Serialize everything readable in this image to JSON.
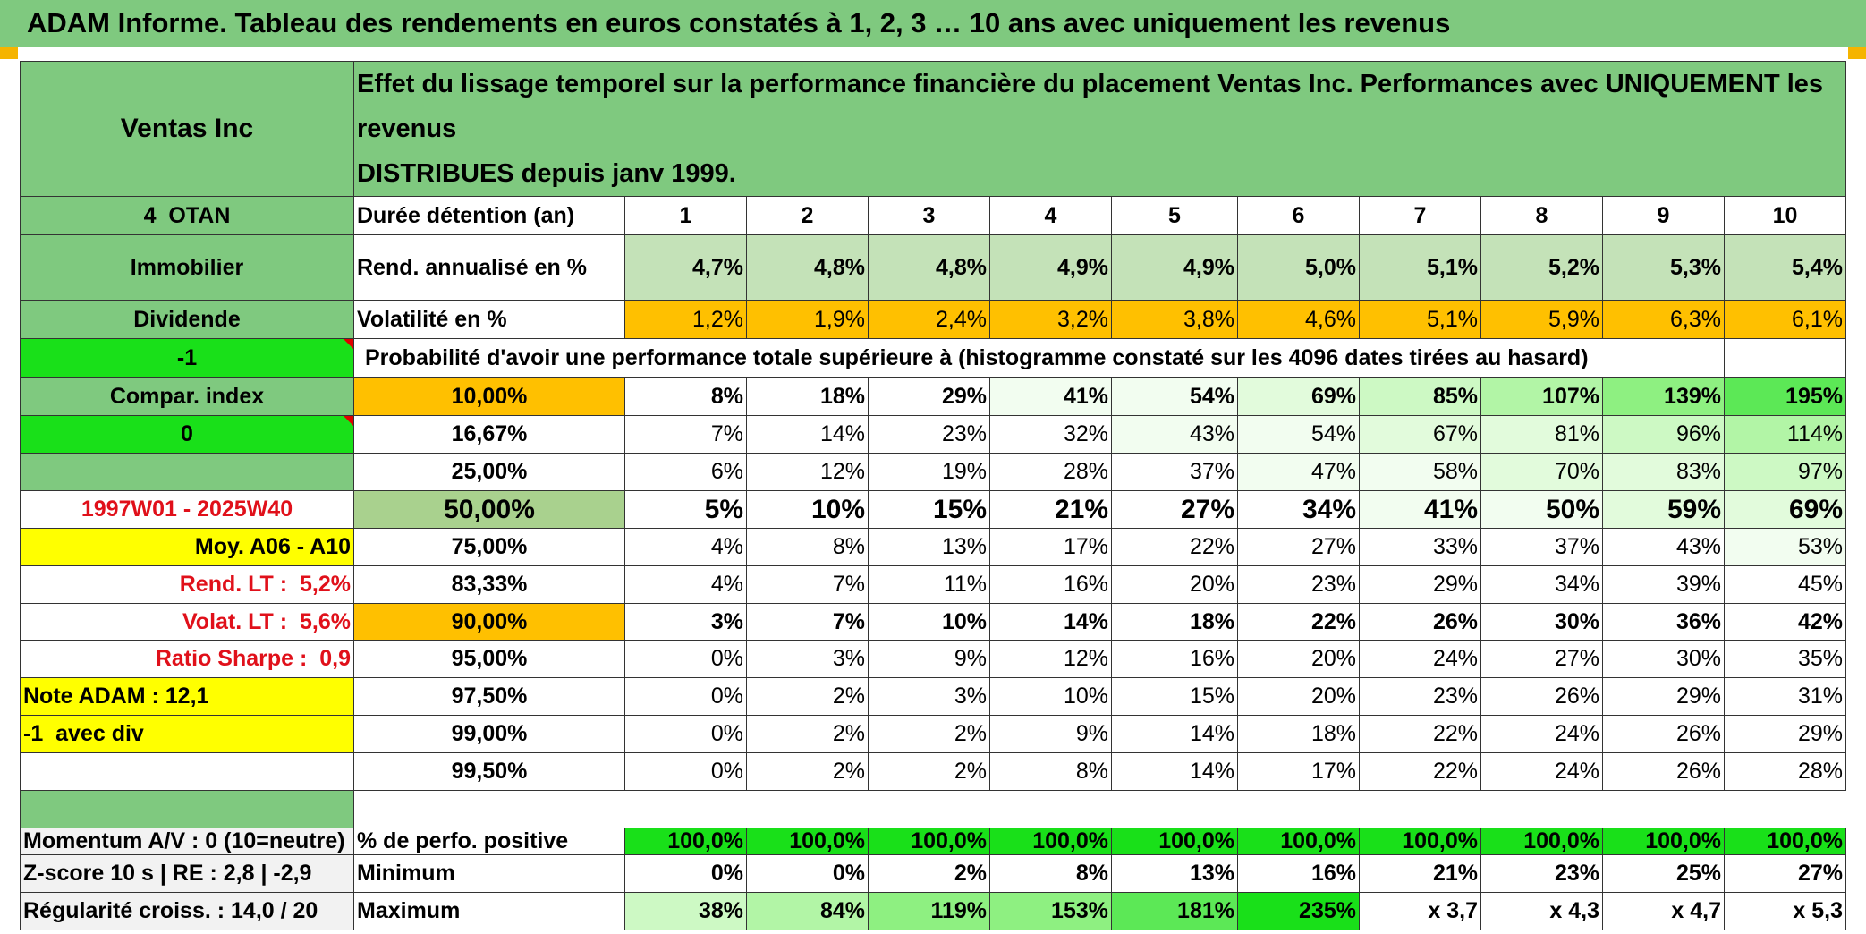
{
  "title": "ADAM Informe. Tableau des rendements en euros constatés à 1, 2, 3 … 10 ans avec uniquement les revenus",
  "header": {
    "asset_name": "Ventas Inc",
    "description_line1": "Effet du lissage temporel sur la performance financière du placement Ventas Inc. Performances avec UNIQUEMENT les revenus",
    "description_line2": "DISTRIBUES depuis janv 1999."
  },
  "side_labels": {
    "code": "4_OTAN",
    "sector": "Immobilier",
    "type": "Dividende",
    "flag_value": "-1",
    "compar_index": "Compar. index",
    "compar_value": "0",
    "period": "1997W01 - 2025W40",
    "moy": "Moy. A06 - A10",
    "rend_lt_label": "Rend. LT :",
    "rend_lt_value": "5,2%",
    "volat_lt_label": "Volat. LT :",
    "volat_lt_value": "5,6%",
    "sharpe_label": "Ratio Sharpe :",
    "sharpe_value": "0,9",
    "note_adam": "Note ADAM : 12,1",
    "avec_div": "-1_avec div",
    "momentum": "Momentum A/V : 0 (10=neutre)",
    "zscore": "Z-score 10 s | RE : 2,8 | -2,9",
    "regularite": "Régularité croiss. : 14,0 / 20"
  },
  "row_labels": {
    "duree": "Durée détention (an)",
    "rend": "Rend. annualisé en %",
    "volat": "Volatilité en %",
    "proba": "Probabilité d'avoir une performance totale supérieure à (histogramme constaté sur les 4096 dates tirées au hasard)",
    "perfo_pos": "% de perfo. positive",
    "minimum": "Minimum",
    "maximum": "Maximum"
  },
  "years": [
    "1",
    "2",
    "3",
    "4",
    "5",
    "6",
    "7",
    "8",
    "9",
    "10"
  ],
  "rend_annualise": [
    "4,7%",
    "4,8%",
    "4,8%",
    "4,9%",
    "4,9%",
    "5,0%",
    "5,1%",
    "5,2%",
    "5,3%",
    "5,4%"
  ],
  "volatilite": [
    "1,2%",
    "1,9%",
    "2,4%",
    "3,2%",
    "3,8%",
    "4,6%",
    "5,1%",
    "5,9%",
    "6,3%",
    "6,1%"
  ],
  "percentile_rows": [
    {
      "label": "10,00%",
      "values": [
        "8%",
        "18%",
        "29%",
        "41%",
        "54%",
        "69%",
        "85%",
        "107%",
        "139%",
        "195%"
      ]
    },
    {
      "label": "16,67%",
      "values": [
        "7%",
        "14%",
        "23%",
        "32%",
        "43%",
        "54%",
        "67%",
        "81%",
        "96%",
        "114%"
      ]
    },
    {
      "label": "25,00%",
      "values": [
        "6%",
        "12%",
        "19%",
        "28%",
        "37%",
        "47%",
        "58%",
        "70%",
        "83%",
        "97%"
      ]
    },
    {
      "label": "50,00%",
      "values": [
        "5%",
        "10%",
        "15%",
        "21%",
        "27%",
        "34%",
        "41%",
        "50%",
        "59%",
        "69%"
      ]
    },
    {
      "label": "75,00%",
      "values": [
        "4%",
        "8%",
        "13%",
        "17%",
        "22%",
        "27%",
        "33%",
        "37%",
        "43%",
        "53%"
      ]
    },
    {
      "label": "83,33%",
      "values": [
        "4%",
        "7%",
        "11%",
        "16%",
        "20%",
        "23%",
        "29%",
        "34%",
        "39%",
        "45%"
      ]
    },
    {
      "label": "90,00%",
      "values": [
        "3%",
        "7%",
        "10%",
        "14%",
        "18%",
        "22%",
        "26%",
        "30%",
        "36%",
        "42%"
      ]
    },
    {
      "label": "95,00%",
      "values": [
        "0%",
        "3%",
        "9%",
        "12%",
        "16%",
        "20%",
        "24%",
        "27%",
        "30%",
        "35%"
      ]
    },
    {
      "label": "97,50%",
      "values": [
        "0%",
        "2%",
        "3%",
        "10%",
        "15%",
        "20%",
        "23%",
        "26%",
        "29%",
        "31%"
      ]
    },
    {
      "label": "99,00%",
      "values": [
        "0%",
        "2%",
        "2%",
        "9%",
        "14%",
        "18%",
        "22%",
        "24%",
        "26%",
        "29%"
      ]
    },
    {
      "label": "99,50%",
      "values": [
        "0%",
        "2%",
        "2%",
        "8%",
        "14%",
        "17%",
        "22%",
        "24%",
        "26%",
        "28%"
      ]
    }
  ],
  "perfo_positive": [
    "100,0%",
    "100,0%",
    "100,0%",
    "100,0%",
    "100,0%",
    "100,0%",
    "100,0%",
    "100,0%",
    "100,0%",
    "100,0%"
  ],
  "minimum": [
    "0%",
    "0%",
    "2%",
    "8%",
    "13%",
    "16%",
    "21%",
    "23%",
    "25%",
    "27%"
  ],
  "maximum": [
    "38%",
    "84%",
    "119%",
    "153%",
    "181%",
    "235%",
    "x 3,7",
    "x 4,3",
    "x 4,7",
    "x 5,3"
  ],
  "colors": {
    "header_green": "#7fc97f",
    "bright_green": "#19e019",
    "yellow": "#ffff00",
    "orange": "#ffc000",
    "light_green": "#c4e2b8",
    "red_text": "#e0101a"
  }
}
